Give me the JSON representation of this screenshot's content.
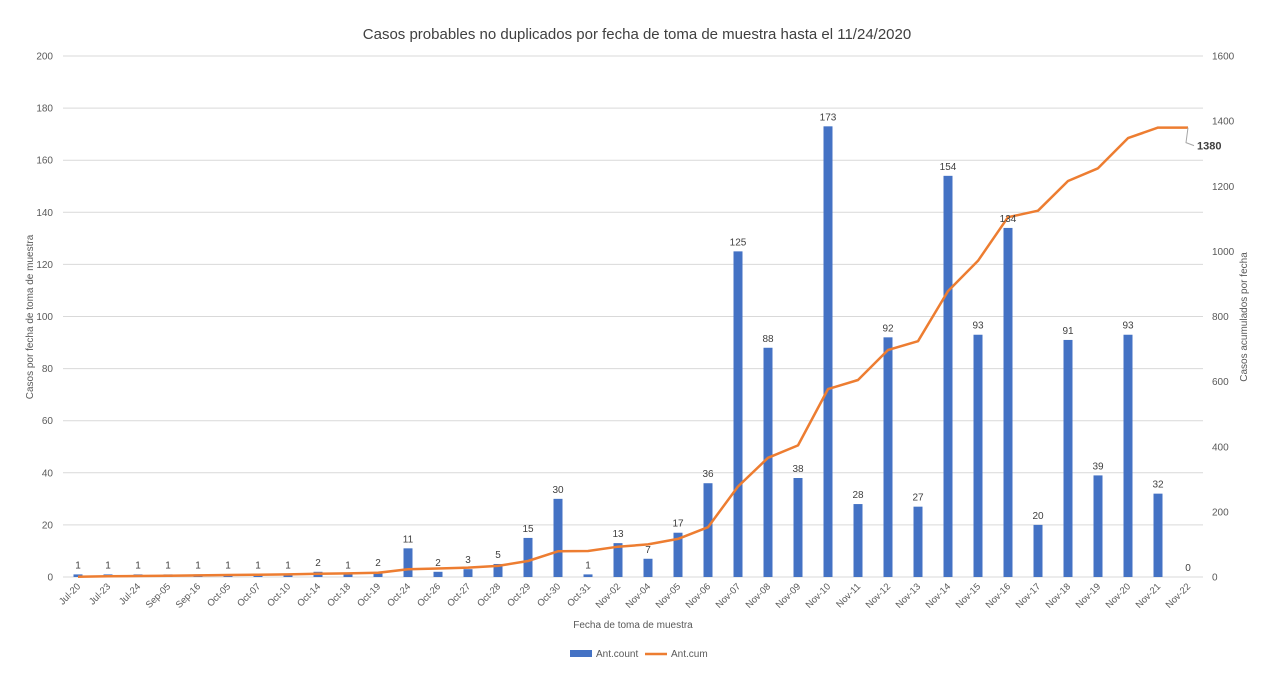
{
  "chart_data": {
    "type": "bar",
    "title": "Casos probables no duplicados por fecha de toma de muestra hasta el 11/24/2020",
    "xlabel": "Fecha de toma de muestra",
    "ylabel": "Casos por fecha de toma de muestra",
    "y2label": "Casos acumulados por fecha",
    "ylim": [
      0,
      200
    ],
    "y2lim": [
      0,
      1600
    ],
    "yticks": [
      "0",
      "20",
      "40",
      "60",
      "80",
      "100",
      "120",
      "140",
      "160",
      "180",
      "200"
    ],
    "y2ticks": [
      "0",
      "200",
      "400",
      "600",
      "800",
      "1000",
      "1200",
      "1400",
      "1600"
    ],
    "categories": [
      "Jul-20",
      "Jul-23",
      "Jul-24",
      "Sep-05",
      "Sep-16",
      "Oct-05",
      "Oct-07",
      "Oct-10",
      "Oct-14",
      "Oct-18",
      "Oct-19",
      "Oct-24",
      "Oct-26",
      "Oct-27",
      "Oct-28",
      "Oct-29",
      "Oct-30",
      "Oct-31",
      "Nov-02",
      "Nov-04",
      "Nov-05",
      "Nov-06",
      "Nov-07",
      "Nov-08",
      "Nov-09",
      "Nov-10",
      "Nov-11",
      "Nov-12",
      "Nov-13",
      "Nov-14",
      "Nov-15",
      "Nov-16",
      "Nov-17",
      "Nov-18",
      "Nov-19",
      "Nov-20",
      "Nov-21",
      "Nov-22"
    ],
    "series": [
      {
        "name": "Ant.count",
        "type": "bar",
        "axis": "left",
        "color": "#4472c4",
        "values": [
          1,
          1,
          1,
          1,
          1,
          1,
          1,
          1,
          2,
          1,
          2,
          11,
          2,
          3,
          5,
          15,
          30,
          1,
          13,
          7,
          17,
          36,
          125,
          88,
          38,
          173,
          28,
          92,
          27,
          154,
          93,
          134,
          20,
          91,
          39,
          93,
          32,
          0
        ]
      },
      {
        "name": "Ant.cum",
        "type": "line",
        "axis": "right",
        "color": "#ed7d31",
        "values": [
          1,
          2,
          3,
          4,
          5,
          6,
          7,
          8,
          10,
          11,
          13,
          24,
          26,
          29,
          34,
          49,
          79,
          80,
          93,
          100,
          117,
          153,
          278,
          366,
          404,
          577,
          605,
          697,
          724,
          878,
          971,
          1105,
          1125,
          1216,
          1255,
          1348,
          1380,
          1380
        ]
      }
    ],
    "annotation": "1380",
    "legend": "bottom",
    "grid": true
  }
}
